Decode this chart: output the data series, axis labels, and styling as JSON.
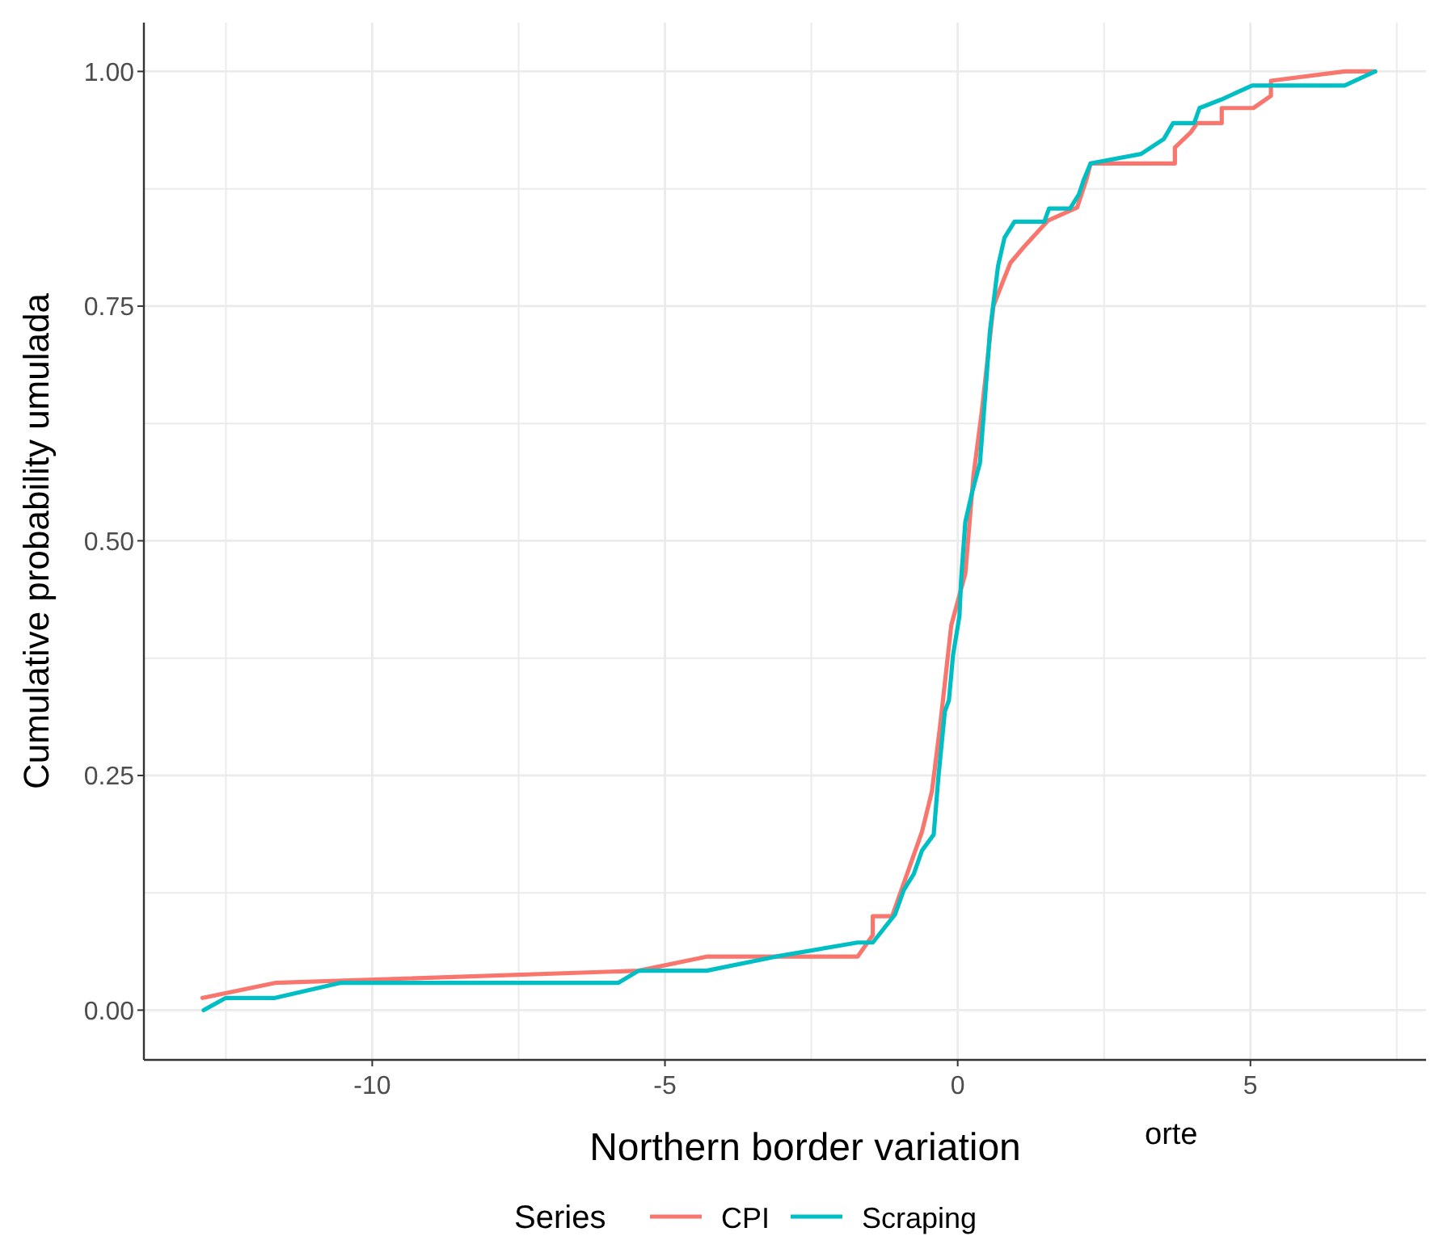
{
  "chart_data": {
    "type": "line",
    "xlabel": "Northern border variation",
    "ylabel": "Cumulative probability  umulada",
    "legend_title": "Series",
    "legend": "bottom",
    "grid": true,
    "line_style": "solid",
    "xlim": [
      -13.9,
      8.0
    ],
    "ylim": [
      -0.053,
      1.052
    ],
    "xticks": [
      {
        "value": -12.5,
        "label": null
      },
      {
        "value": -10,
        "label": "-10"
      },
      {
        "value": -7.5,
        "label": null
      },
      {
        "value": -5,
        "label": "-5"
      },
      {
        "value": -2.5,
        "label": null
      },
      0,
      {
        "value": 2.5,
        "label": null
      },
      5,
      {
        "value": 7.5,
        "label": null
      }
    ],
    "yticks": [
      {
        "value": 0,
        "label": "0.00"
      },
      {
        "value": 0.125,
        "label": null
      },
      {
        "value": 0.25,
        "label": "0.25"
      },
      {
        "value": 0.375,
        "label": null
      },
      {
        "value": 0.5,
        "label": "0.50"
      },
      {
        "value": 0.625,
        "label": null
      },
      {
        "value": 0.75,
        "label": "0.75"
      },
      {
        "value": 0.875,
        "label": null
      },
      {
        "value": 1,
        "label": "1.00"
      }
    ],
    "annotations": [
      "orte"
    ],
    "series": [
      {
        "name": "CPI",
        "color": "#f8766d",
        "x": [
          -12.9,
          -11.66,
          -5.45,
          -4.29,
          -1.71,
          -1.45,
          -1.45,
          -1.12,
          -0.86,
          -0.61,
          -0.44,
          -0.3,
          -0.11,
          0.13,
          0.27,
          0.41,
          0.61,
          0.79,
          0.9,
          1.13,
          1.54,
          2.04,
          2.2,
          2.27,
          3.71,
          3.71,
          3.98,
          4.09,
          4.51,
          4.51,
          5.05,
          5.35,
          5.35,
          6.61,
          7.13
        ],
        "values": [
          0.013,
          0.029,
          0.042,
          0.057,
          0.057,
          0.08,
          0.1,
          0.1,
          0.146,
          0.19,
          0.233,
          0.303,
          0.41,
          0.465,
          0.57,
          0.637,
          0.75,
          0.779,
          0.796,
          0.813,
          0.841,
          0.855,
          0.885,
          0.902,
          0.902,
          0.919,
          0.935,
          0.945,
          0.945,
          0.961,
          0.961,
          0.974,
          0.99,
          1.0,
          1.0
        ]
      },
      {
        "name": "Scraping",
        "color": "#00bfc4",
        "x": [
          -12.88,
          -12.5,
          -11.66,
          -10.55,
          -5.8,
          -5.45,
          -4.29,
          -3.11,
          -1.71,
          -1.45,
          -1.07,
          -0.92,
          -0.75,
          -0.61,
          -0.41,
          -0.33,
          -0.22,
          -0.15,
          -0.08,
          0.03,
          0.06,
          0.13,
          0.24,
          0.38,
          0.48,
          0.55,
          0.69,
          0.8,
          0.97,
          1.48,
          1.56,
          1.92,
          2.07,
          2.15,
          2.27,
          3.13,
          3.52,
          3.68,
          4.04,
          4.13,
          4.5,
          5.03,
          6.61,
          7.13
        ],
        "values": [
          0,
          0.013,
          0.013,
          0.029,
          0.029,
          0.042,
          0.042,
          0.057,
          0.072,
          0.072,
          0.102,
          0.128,
          0.145,
          0.17,
          0.187,
          0.248,
          0.318,
          0.33,
          0.378,
          0.42,
          0.46,
          0.52,
          0.55,
          0.583,
          0.663,
          0.723,
          0.793,
          0.823,
          0.84,
          0.84,
          0.854,
          0.854,
          0.869,
          0.884,
          0.902,
          0.912,
          0.928,
          0.945,
          0.945,
          0.961,
          0.97,
          0.985,
          0.985,
          1.0
        ]
      }
    ]
  }
}
